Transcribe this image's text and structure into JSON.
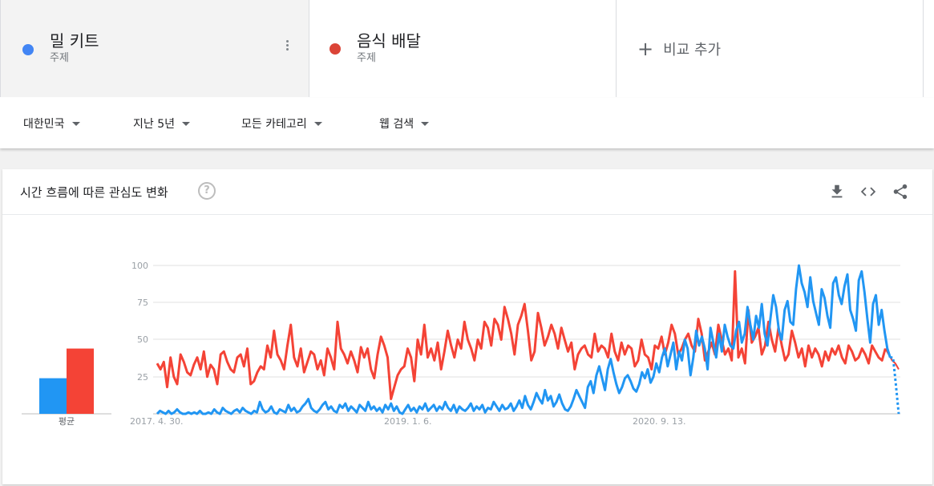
{
  "terms": [
    {
      "name": "밀 키트",
      "type": "주제",
      "color": "#4285f4"
    },
    {
      "name": "음식 배달",
      "type": "주제",
      "color": "#db4437"
    }
  ],
  "add_compare": {
    "plus": "+",
    "label": "비교 추가"
  },
  "filters": [
    {
      "label": "대한민국"
    },
    {
      "label": "지난 5년"
    },
    {
      "label": "모든 카테고리"
    },
    {
      "label": "웹 검색"
    }
  ],
  "card": {
    "title": "시간 흐름에 따른 관심도 변화",
    "help": "?"
  },
  "chart_data": {
    "type": "line",
    "x_tick_labels": [
      "2017. 4. 30.",
      "2019. 1. 6.",
      "2020. 9. 13."
    ],
    "y_tick_labels": [
      "100",
      "75",
      "50",
      "25"
    ],
    "ylim": [
      0,
      100
    ],
    "average_label": "평균",
    "average_values": [
      24,
      44
    ],
    "grid": true,
    "series": [
      {
        "name": "밀 키트",
        "color": "#2196f3",
        "values": [
          0,
          2,
          1,
          0,
          2,
          0,
          1,
          3,
          1,
          0,
          0,
          1,
          0,
          1,
          0,
          2,
          0,
          0,
          1,
          0,
          3,
          1,
          0,
          4,
          2,
          1,
          0,
          2,
          3,
          1,
          4,
          2,
          1,
          0,
          2,
          1,
          8,
          3,
          1,
          2,
          5,
          1,
          0,
          3,
          2,
          1,
          6,
          2,
          4,
          1,
          2,
          5,
          7,
          10,
          4,
          2,
          1,
          3,
          6,
          8,
          3,
          5,
          2,
          1,
          6,
          4,
          7,
          2,
          5,
          3,
          1,
          6,
          4,
          2,
          8,
          3,
          5,
          2,
          4,
          1,
          6,
          3,
          7,
          2,
          5,
          1,
          0,
          3,
          6,
          2,
          4,
          1,
          5,
          3,
          7,
          2,
          4,
          6,
          2,
          5,
          3,
          8,
          4,
          2,
          6,
          1,
          5,
          3,
          2,
          4,
          7,
          2,
          5,
          3,
          6,
          1,
          4,
          3,
          8,
          5,
          2,
          6,
          3,
          4,
          7,
          2,
          5,
          9,
          4,
          12,
          6,
          3,
          8,
          14,
          10,
          7,
          16,
          9,
          12,
          5,
          8,
          13,
          7,
          3,
          2,
          5,
          10,
          16,
          12,
          8,
          4,
          18,
          22,
          14,
          26,
          32,
          24,
          16,
          30,
          37,
          28,
          20,
          14,
          18,
          24,
          26,
          22,
          17,
          15,
          20,
          28,
          24,
          30,
          21,
          25,
          34,
          28,
          38,
          44,
          32,
          40,
          48,
          30,
          42,
          36,
          50,
          44,
          26,
          38,
          56,
          46,
          52,
          44,
          30,
          58,
          48,
          38,
          54,
          42,
          60,
          52,
          46,
          44,
          56,
          62,
          48,
          54,
          72,
          60,
          50,
          66,
          58,
          74,
          54,
          46,
          64,
          80,
          72,
          56,
          50,
          70,
          76,
          62,
          60,
          84,
          100,
          88,
          82,
          72,
          92,
          76,
          68,
          60,
          84,
          78,
          66,
          58,
          88,
          92,
          80,
          74,
          86,
          94,
          70,
          64,
          56,
          90,
          96,
          82,
          64,
          48,
          74,
          80,
          60,
          70,
          56,
          44,
          38
        ],
        "dotted_tail": [
          38,
          20,
          0
        ]
      },
      {
        "name": "음식 배달",
        "color": "#f44336",
        "values": [
          34,
          30,
          35,
          18,
          38,
          25,
          20,
          40,
          35,
          28,
          26,
          33,
          38,
          30,
          42,
          25,
          33,
          30,
          20,
          40,
          42,
          35,
          30,
          28,
          38,
          40,
          32,
          44,
          20,
          22,
          28,
          32,
          30,
          46,
          38,
          56,
          40,
          36,
          30,
          46,
          60,
          38,
          32,
          44,
          28,
          35,
          42,
          40,
          30,
          36,
          26,
          44,
          38,
          30,
          62,
          44,
          40,
          34,
          42,
          36,
          28,
          45,
          38,
          44,
          30,
          24,
          40,
          52,
          46,
          38,
          10,
          18,
          26,
          30,
          32,
          44,
          38,
          22,
          50,
          40,
          60,
          38,
          44,
          36,
          48,
          30,
          42,
          56,
          46,
          38,
          50,
          44,
          62,
          50,
          44,
          36,
          50,
          44,
          62,
          58,
          46,
          64,
          60,
          50,
          72,
          64,
          54,
          40,
          60,
          66,
          74,
          56,
          36,
          42,
          68,
          58,
          46,
          52,
          60,
          54,
          44,
          58,
          50,
          42,
          48,
          30,
          40,
          44,
          46,
          40,
          38,
          54,
          42,
          46,
          44,
          38,
          54,
          42,
          36,
          48,
          40,
          46,
          44,
          32,
          36,
          50,
          40,
          38,
          30,
          46,
          44,
          52,
          40,
          48,
          60,
          54,
          40,
          44,
          50,
          54,
          46,
          42,
          64,
          54,
          36,
          42,
          48,
          40,
          60,
          50,
          40,
          44,
          36,
          96,
          38,
          44,
          34,
          70,
          48,
          52,
          58,
          40,
          46,
          62,
          50,
          42,
          58,
          46,
          36,
          40,
          56,
          48,
          38,
          44,
          32,
          46,
          38,
          44,
          40,
          32,
          42,
          36,
          44,
          40,
          46,
          38,
          34,
          46,
          42,
          36,
          38,
          44,
          40,
          34,
          46,
          42,
          38,
          36,
          44
        ],
        "tail": [
          40,
          36,
          34,
          30
        ]
      }
    ]
  },
  "colors": {
    "blue": "#2196f3",
    "red": "#f44336",
    "grid": "#e0e0e0"
  }
}
